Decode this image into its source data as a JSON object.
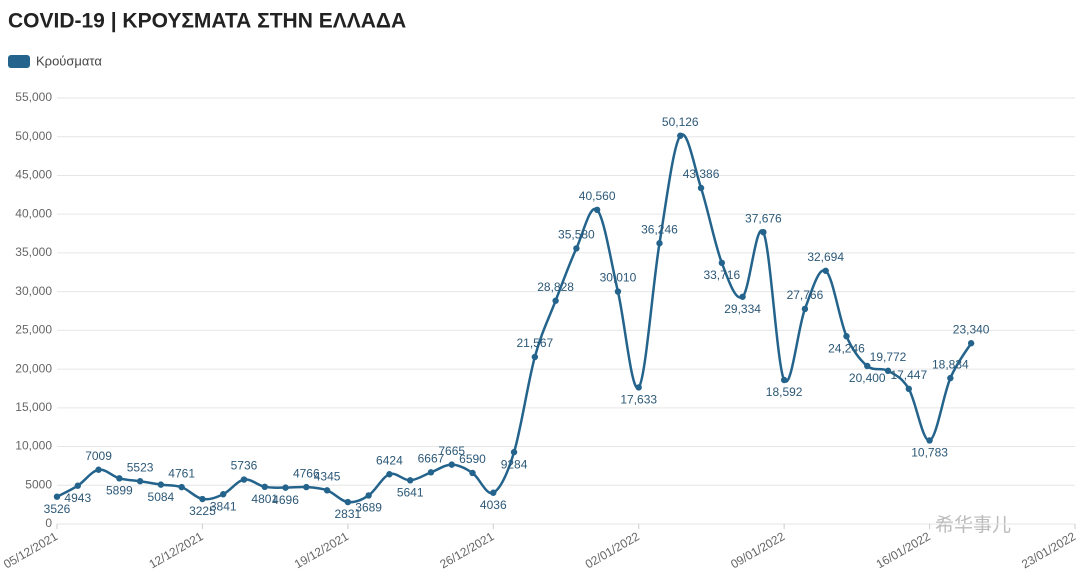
{
  "chart_data": {
    "type": "line",
    "title": "COVID-19 | ΚΡΟΥΣΜΑΤΑ ΣΤΗΝ ΕΛΛΑΔΑ",
    "watermark": "希华事儿",
    "x": [
      "05/12/2021",
      "06/12/2021",
      "07/12/2021",
      "08/12/2021",
      "09/12/2021",
      "10/12/2021",
      "11/12/2021",
      "12/12/2021",
      "13/12/2021",
      "14/12/2021",
      "15/12/2021",
      "16/12/2021",
      "17/12/2021",
      "18/12/2021",
      "19/12/2021",
      "20/12/2021",
      "21/12/2021",
      "22/12/2021",
      "23/12/2021",
      "24/12/2021",
      "25/12/2021",
      "26/12/2021",
      "27/12/2021",
      "28/12/2021",
      "29/12/2021",
      "30/12/2021",
      "31/12/2021",
      "01/01/2022",
      "02/01/2022",
      "03/01/2022",
      "04/01/2022",
      "05/01/2022",
      "06/01/2022",
      "07/01/2022",
      "08/01/2022",
      "09/01/2022",
      "10/01/2022",
      "11/01/2022",
      "12/01/2022",
      "13/01/2022",
      "14/01/2022",
      "15/01/2022",
      "16/01/2022",
      "17/01/2022",
      "18/01/2022"
    ],
    "series": [
      {
        "name": "Κρούσματα",
        "color": "#24648c",
        "values": [
          3526,
          4943,
          7009,
          5899,
          5523,
          5084,
          4761,
          3225,
          3841,
          5736,
          4801,
          4696,
          4766,
          4345,
          2831,
          3689,
          6424,
          5641,
          6667,
          7665,
          6590,
          4036,
          9284,
          21567,
          28828,
          35580,
          40560,
          30010,
          17633,
          36246,
          50126,
          43386,
          33716,
          29334,
          37676,
          18592,
          27766,
          32694,
          24246,
          20400,
          19772,
          17447,
          10783,
          18834,
          23340
        ],
        "value_labels": [
          "3526",
          "4943",
          "7009",
          "5899",
          "5523",
          "5084",
          "4761",
          "3225",
          "3841",
          "5736",
          "4801",
          "4696",
          "4766",
          "4345",
          "2831",
          "3689",
          "6424",
          "5641",
          "6667",
          "7665",
          "6590",
          "4036",
          "9284",
          "21,567",
          "28,828",
          "35,580",
          "40,560",
          "30,010",
          "17,633",
          "36,246",
          "50,126",
          "43,386",
          "33,716",
          "29,334",
          "37,676",
          "18,592",
          "27,766",
          "32,694",
          "24,246",
          "20,400",
          "19,772",
          "17,447",
          "10,783",
          "18,834",
          "23,340"
        ]
      }
    ],
    "xlim": [
      "05/12/2021",
      "23/01/2022"
    ],
    "xticks": [
      "05/12/2021",
      "12/12/2021",
      "19/12/2021",
      "26/12/2021",
      "02/01/2022",
      "09/01/2022",
      "16/01/2022",
      "23/01/2022"
    ],
    "ylim": [
      0,
      55000
    ],
    "yticks": [
      0,
      5000,
      {
        "value": 10000,
        "label": "10,000"
      },
      {
        "value": 15000,
        "label": "15,000"
      },
      {
        "value": 20000,
        "label": "20,000"
      },
      {
        "value": 25000,
        "label": "25,000"
      },
      {
        "value": 30000,
        "label": "30,000"
      },
      {
        "value": 35000,
        "label": "35,000"
      },
      {
        "value": 40000,
        "label": "40,000"
      },
      {
        "value": 45000,
        "label": "45,000"
      },
      {
        "value": 50000,
        "label": "50,000"
      },
      {
        "value": 55000,
        "label": "55,000"
      }
    ],
    "grid": true,
    "legend": "top-left"
  }
}
